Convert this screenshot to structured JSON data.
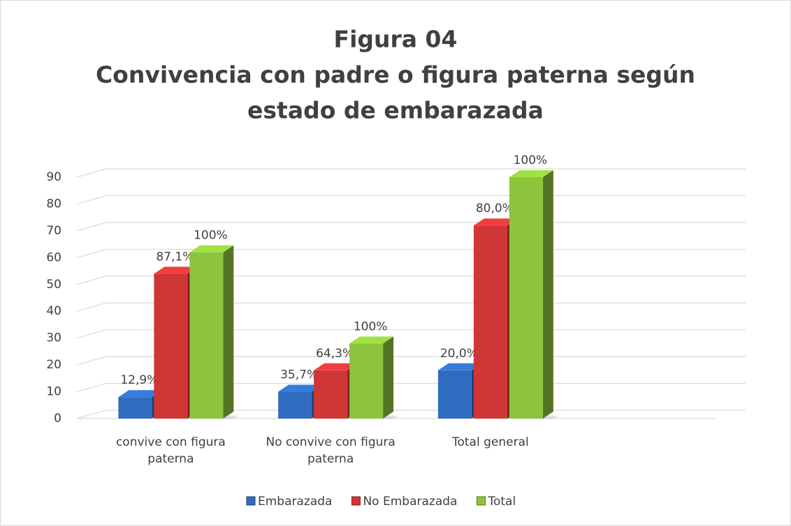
{
  "chart_data": {
    "type": "bar3d",
    "title": [
      "Figura 04",
      "Convivencia con padre o figura paterna según",
      "estado de embarazada"
    ],
    "categories": [
      "convive con figura paterna",
      "No convive con figura paterna",
      "Total general"
    ],
    "series": [
      {
        "name": "Embarazada",
        "color": "#2f6cbf",
        "values": [
          8,
          10,
          18
        ],
        "value_labels": [
          "12,9%",
          "35,7%",
          "20,0%"
        ]
      },
      {
        "name": "No Embarazada",
        "color": "#d03636",
        "values": [
          54,
          18,
          72
        ],
        "value_labels": [
          "87,1%",
          "64,3%",
          "80,0%"
        ]
      },
      {
        "name": "Total",
        "color": "#8cc43c",
        "values": [
          62,
          28,
          90
        ],
        "value_labels": [
          "100%",
          "100%",
          "100%"
        ]
      }
    ],
    "ylim": [
      0,
      90
    ],
    "yticks": [
      0,
      10,
      20,
      30,
      40,
      50,
      60,
      70,
      80,
      90
    ],
    "grid": true,
    "legend": "bottom"
  }
}
